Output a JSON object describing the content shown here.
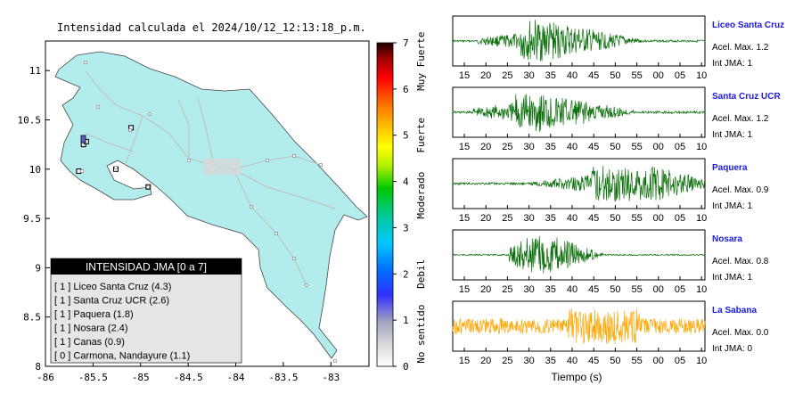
{
  "map": {
    "title": "Intensidad calculada el 2024/10/12_12:13:18_p.m.",
    "lon_ticks": [
      "-86",
      "-85.5",
      "-85",
      "-84.5",
      "-84",
      "-83.5",
      "-83"
    ],
    "lat_ticks": [
      "11",
      "10.5",
      "10",
      "9.5",
      "9",
      "8.5",
      "8"
    ],
    "lon_range": [
      -86,
      -82.6
    ],
    "lat_range": [
      8,
      11.3
    ],
    "land_color": "#b2eced",
    "legend": {
      "title": "INTENSIDAD JMA [0 a 7]",
      "items": [
        "[ 1 ]  Liceo Santa Cruz (4.3)",
        "[ 1 ]  Santa Cruz UCR (2.6)",
        "[ 1 ]  Paquera (1.8)",
        "[ 1 ]  Nosara (2.4)",
        "[ 1 ]  Canas (0.9)",
        "[ 0 ]  Carmona, Nandayure (1.1)"
      ]
    }
  },
  "colorbar": {
    "ticks": [
      "0",
      "1",
      "2",
      "3",
      "4",
      "5",
      "6",
      "7"
    ],
    "categories": [
      "No sentido",
      "Debil",
      "Moderado",
      "Fuerte",
      "Muy Fuerte"
    ],
    "range": [
      0,
      7
    ]
  },
  "traces": {
    "xlabel": "Tiempo (s)",
    "ticks": [
      "15",
      "20",
      "25",
      "30",
      "35",
      "40",
      "45",
      "50",
      "55",
      "00",
      "05",
      "10"
    ],
    "stations": [
      {
        "name": "Liceo Santa Cruz",
        "accel": "Acel. Max. 1.2",
        "jma": "Int JMA: 1",
        "color": "#0a6e0a"
      },
      {
        "name": "Santa Cruz UCR",
        "accel": "Acel. Max. 1.2",
        "jma": "Int JMA: 1",
        "color": "#0a6e0a"
      },
      {
        "name": "Paquera",
        "accel": "Acel. Max. 0.9",
        "jma": "Int JMA: 1",
        "color": "#0a6e0a"
      },
      {
        "name": "Nosara",
        "accel": "Acel. Max. 0.8",
        "jma": "Int JMA: 1",
        "color": "#0a6e0a"
      },
      {
        "name": "La Sabana",
        "accel": "Acel. Max. 0.0",
        "jma": "Int JMA: 0",
        "color": "#ffa500"
      }
    ]
  },
  "chart_data": [
    {
      "type": "scatter",
      "title": "Intensidad calculada el 2024/10/12_12:13:18_p.m.",
      "xlabel": "",
      "ylabel": "",
      "xlim": [
        -86,
        -82.6
      ],
      "ylim": [
        8,
        11.3
      ],
      "series": [
        {
          "name": "Liceo Santa Cruz",
          "values": [
            [
              -85.6,
              10.25
            ]
          ],
          "intensity": 1
        },
        {
          "name": "Santa Cruz UCR",
          "values": [
            [
              -85.57,
              10.28
            ]
          ],
          "intensity": 1
        },
        {
          "name": "Paquera",
          "values": [
            [
              -84.92,
              9.82
            ]
          ],
          "intensity": 1
        },
        {
          "name": "Nosara",
          "values": [
            [
              -85.65,
              9.98
            ]
          ],
          "intensity": 1
        },
        {
          "name": "Canas",
          "values": [
            [
              -85.1,
              10.42
            ]
          ],
          "intensity": 1
        },
        {
          "name": "Carmona, Nandayure",
          "values": [
            [
              -85.26,
              10.0
            ]
          ],
          "intensity": 0
        }
      ]
    },
    {
      "type": "line",
      "xlabel": "Tiempo (s)",
      "x_ticks": [
        "15",
        "20",
        "25",
        "30",
        "35",
        "40",
        "45",
        "50",
        "55",
        "00",
        "05",
        "10"
      ],
      "series": [
        {
          "name": "Liceo Santa Cruz",
          "peak_accel": 1.2,
          "jma": 1
        },
        {
          "name": "Santa Cruz UCR",
          "peak_accel": 1.2,
          "jma": 1
        },
        {
          "name": "Paquera",
          "peak_accel": 0.9,
          "jma": 1
        },
        {
          "name": "Nosara",
          "peak_accel": 0.8,
          "jma": 1
        },
        {
          "name": "La Sabana",
          "peak_accel": 0.0,
          "jma": 0
        }
      ]
    }
  ]
}
